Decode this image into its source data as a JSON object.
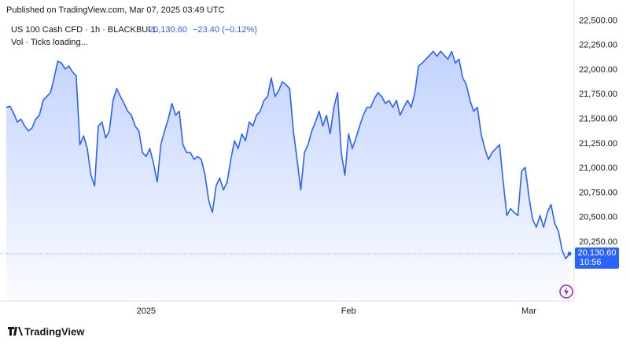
{
  "chart_data": {
    "type": "area",
    "published": "Published on TradingView.com, Mar 07, 2025 03:49 UTC",
    "title": "US 100 Cash CFD · 1h · BLACKBULL",
    "price_label": "20,130.60",
    "change": "−23.40 (−0.12%)",
    "volume_text": "Vol · Ticks loading...",
    "countdown": "10:56",
    "brand": "TradingView",
    "color": "#2962ff",
    "grid": false,
    "values": [
      21620,
      21630,
      21560,
      21470,
      21500,
      21430,
      21380,
      21410,
      21500,
      21540,
      21690,
      21730,
      21770,
      21920,
      22090,
      22070,
      22010,
      22040,
      21980,
      21940,
      21240,
      21330,
      21200,
      20930,
      20820,
      21430,
      21470,
      21310,
      21380,
      21690,
      21810,
      21730,
      21660,
      21580,
      21540,
      21430,
      21380,
      21160,
      21120,
      21200,
      21050,
      20860,
      21240,
      21380,
      21500,
      21660,
      21540,
      21580,
      21240,
      21160,
      21160,
      21090,
      21120,
      21090,
      20930,
      20670,
      20550,
      20820,
      20900,
      20780,
      20860,
      21090,
      21280,
      21200,
      21350,
      21280,
      21470,
      21430,
      21540,
      21580,
      21690,
      21730,
      21920,
      21730,
      21790,
      21880,
      21850,
      21810,
      21380,
      21090,
      20780,
      21160,
      21240,
      21380,
      21470,
      21580,
      21430,
      21540,
      21350,
      21620,
      21770,
      21160,
      20930,
      21350,
      21200,
      21310,
      21430,
      21540,
      21620,
      21620,
      21710,
      21770,
      21730,
      21660,
      21690,
      21620,
      21690,
      21540,
      21620,
      21690,
      21620,
      21770,
      22040,
      22070,
      22110,
      22150,
      22190,
      22140,
      22190,
      22150,
      22110,
      22190,
      22070,
      22110,
      21920,
      21850,
      21690,
      21580,
      21620,
      21350,
      21200,
      21090,
      21160,
      21200,
      21240,
      20860,
      20520,
      20590,
      20550,
      20520,
      20970,
      21010,
      20710,
      20480,
      20400,
      20520,
      20400,
      20550,
      20630,
      20440,
      20360,
      20170,
      20080,
      20130.6
    ],
    "xlim": [
      0,
      153
    ],
    "xticks": [
      {
        "value": 38,
        "label": "2025"
      },
      {
        "value": 93,
        "label": "Feb"
      },
      {
        "value": 142,
        "label": "Mar"
      }
    ],
    "ylim": [
      19650,
      22520
    ],
    "yticks": [
      {
        "value": 20250,
        "label": "20,250.00"
      },
      {
        "value": 20500,
        "label": "20,500.00"
      },
      {
        "value": 20750,
        "label": "20,750.00"
      },
      {
        "value": 21000,
        "label": "21,000.00"
      },
      {
        "value": 21250,
        "label": "21,250.00"
      },
      {
        "value": 21500,
        "label": "21,500.00"
      },
      {
        "value": 21750,
        "label": "21,750.00"
      },
      {
        "value": 22000,
        "label": "22,000.00"
      },
      {
        "value": 22250,
        "label": "22,250.00"
      },
      {
        "value": 22500,
        "label": "22,500.00"
      }
    ]
  }
}
